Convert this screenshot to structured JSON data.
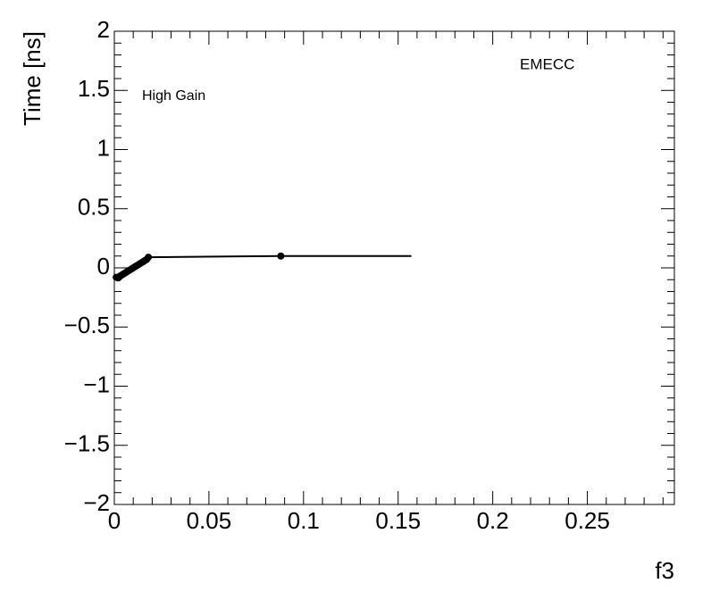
{
  "chart_data": {
    "type": "scatter",
    "x_label": "f3",
    "y_label": "Time [ns]",
    "annotations": [
      "High Gain",
      "EMECC"
    ],
    "series": [
      {
        "color": "#000000",
        "marker": true,
        "line": true,
        "x": [
          0.001,
          0.002,
          0.003,
          0.004,
          0.005,
          0.006,
          0.007,
          0.008,
          0.009,
          0.01,
          0.011,
          0.012,
          0.013,
          0.014,
          0.015,
          0.016,
          0.017,
          0.018,
          0.088
        ],
        "values": [
          -0.08,
          -0.085,
          -0.07,
          -0.06,
          -0.05,
          -0.04,
          -0.03,
          -0.02,
          -0.01,
          0.0,
          0.01,
          0.02,
          0.03,
          0.04,
          0.05,
          0.06,
          0.07,
          0.09,
          0.1
        ]
      },
      {
        "color": "#000000",
        "marker": false,
        "line": true,
        "x": [
          0.088,
          0.157
        ],
        "values": [
          0.1,
          0.1
        ]
      }
    ],
    "xlim": [
      0,
      0.296
    ],
    "ylim": [
      -2,
      2
    ],
    "xticks": [
      0,
      0.05,
      0.1,
      0.15,
      0.2,
      0.25
    ],
    "yticks": [
      {
        "value": -2,
        "label": "−2"
      },
      {
        "value": -1.5,
        "label": "−1.5"
      },
      {
        "value": -1,
        "label": "−1"
      },
      {
        "value": -0.5,
        "label": "−0.5"
      },
      0,
      0.5,
      1,
      1.5,
      2
    ],
    "x_minor_divisions": 5,
    "y_minor_divisions": 5
  }
}
